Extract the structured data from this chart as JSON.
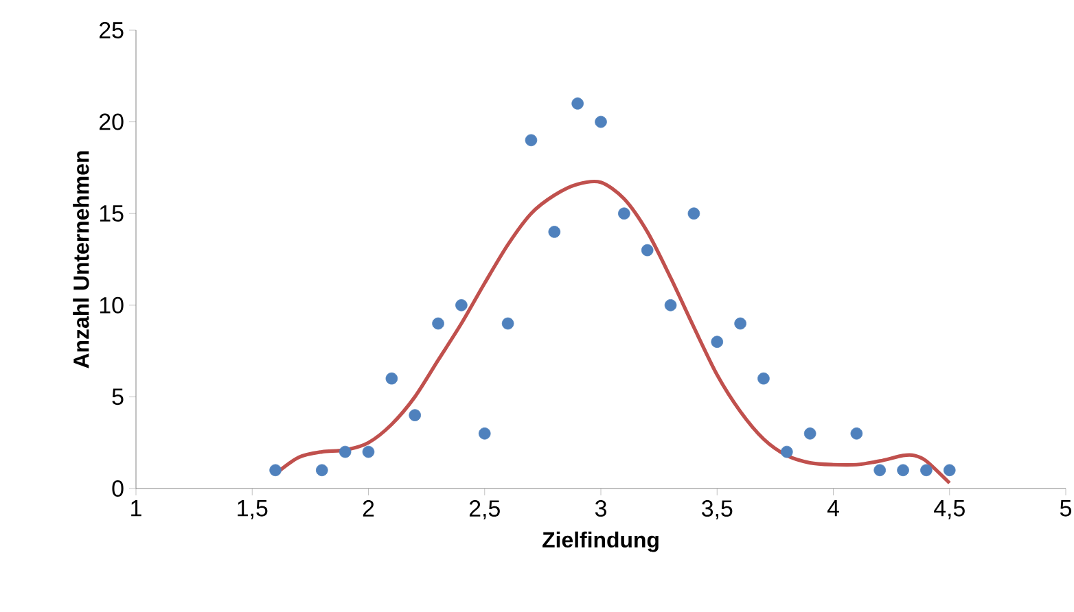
{
  "chart_data": {
    "type": "scatter",
    "xlabel": "Zielfindung",
    "ylabel": "Anzahl Unternehmen",
    "xlim": [
      1,
      5
    ],
    "ylim": [
      0,
      25
    ],
    "xticks": [
      1,
      {
        "value": 1.5,
        "label": "1,5"
      },
      2,
      {
        "value": 2.5,
        "label": "2,5"
      },
      3,
      {
        "value": 3.5,
        "label": "3,5"
      },
      4,
      {
        "value": 4.5,
        "label": "4,5"
      },
      5
    ],
    "yticks": [
      0,
      5,
      10,
      15,
      20,
      25
    ],
    "grid": false,
    "series": [
      {
        "color": "#4f81bd",
        "marker": "circle",
        "x": [
          1.6,
          1.8,
          1.9,
          2.0,
          2.1,
          2.2,
          2.3,
          2.4,
          2.5,
          2.6,
          2.7,
          2.8,
          2.9,
          3.0,
          3.1,
          3.2,
          3.3,
          3.4,
          3.5,
          3.6,
          3.7,
          3.8,
          3.9,
          4.1,
          4.2,
          4.3,
          4.4,
          4.5
        ],
        "values": [
          1,
          1,
          2,
          2,
          6,
          4,
          9,
          10,
          3,
          9,
          19,
          14,
          21,
          20,
          15,
          13,
          10,
          15,
          8,
          9,
          6,
          2,
          3,
          3,
          1,
          1,
          1,
          1
        ]
      },
      {
        "type": "line",
        "color": "#c0504d",
        "marker": "none",
        "line_style": "solid",
        "x": [
          1.6,
          1.7,
          1.8,
          1.9,
          2.0,
          2.1,
          2.2,
          2.3,
          2.4,
          2.5,
          2.6,
          2.7,
          2.8,
          2.9,
          3.0,
          3.1,
          3.2,
          3.3,
          3.4,
          3.5,
          3.6,
          3.7,
          3.8,
          3.9,
          4.0,
          4.1,
          4.2,
          4.3,
          4.35,
          4.4,
          4.5
        ],
        "values": [
          0.8,
          1.7,
          2.0,
          2.1,
          2.5,
          3.5,
          5,
          7,
          9,
          11.2,
          13.3,
          15,
          16,
          16.6,
          16.7,
          15.8,
          14,
          11.5,
          8.8,
          6.2,
          4.2,
          2.7,
          1.8,
          1.4,
          1.3,
          1.3,
          1.5,
          1.8,
          1.8,
          1.5,
          0.3
        ]
      }
    ]
  }
}
